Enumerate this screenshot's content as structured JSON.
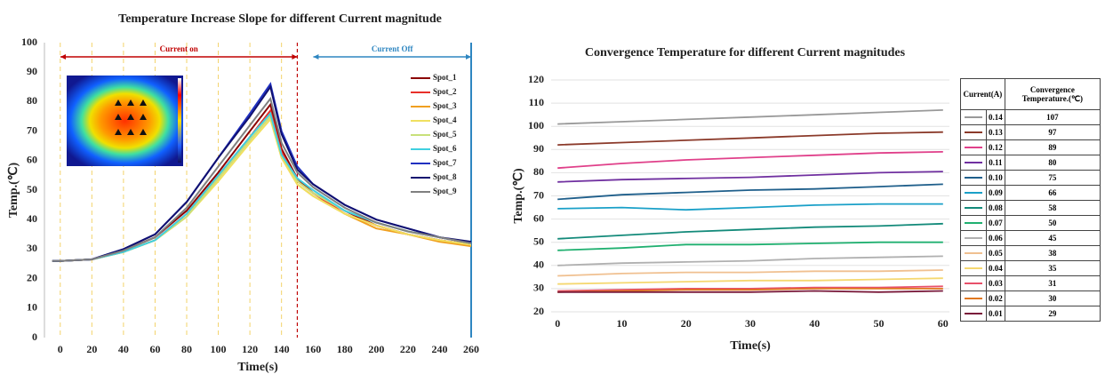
{
  "chart_data": [
    {
      "type": "line",
      "title": "Temperature Increase Slope for different Current magnitude",
      "x_label": "Time(s)",
      "y_label": "Temp.(℃)",
      "xlim": [
        -10,
        260
      ],
      "xticks": [
        0,
        20,
        40,
        60,
        80,
        100,
        120,
        140,
        160,
        180,
        200,
        220,
        240,
        260
      ],
      "ylim": [
        0,
        100
      ],
      "yticks": [
        0,
        10,
        20,
        30,
        40,
        50,
        60,
        70,
        80,
        90,
        100
      ],
      "grid": true,
      "legend": "upper right",
      "annotations": [
        {
          "text": "Current on",
          "x": [
            -10,
            150
          ],
          "color": "#c00000"
        },
        {
          "text": "Current Off",
          "x": [
            150,
            260
          ],
          "color": "#2e86c1"
        }
      ],
      "x": [
        -5,
        0,
        20,
        40,
        60,
        80,
        100,
        120,
        133,
        140,
        150,
        160,
        180,
        200,
        220,
        240,
        260
      ],
      "series": [
        {
          "name": "Spot_1",
          "color": "#8b0000",
          "values": [
            26,
            26,
            26.5,
            29.5,
            34,
            43,
            56,
            70,
            79,
            64,
            54,
            49,
            43,
            38,
            35,
            33,
            31.5
          ]
        },
        {
          "name": "Spot_2",
          "color": "#e8302a",
          "values": [
            26,
            26,
            26.5,
            29,
            33,
            42,
            55,
            68,
            77,
            63,
            53,
            49,
            42,
            38,
            35,
            33,
            31.5
          ]
        },
        {
          "name": "Spot_3",
          "color": "#f0a020",
          "values": [
            26,
            26,
            26.5,
            29,
            33,
            41,
            54,
            67,
            75,
            61,
            52,
            48,
            42,
            37,
            35,
            32.5,
            31
          ]
        },
        {
          "name": "Spot_4",
          "color": "#f0e060",
          "values": [
            26,
            26,
            26.5,
            29,
            33,
            41,
            53,
            66,
            74,
            61,
            52,
            48,
            42,
            38,
            35,
            33,
            31.5
          ]
        },
        {
          "name": "Spot_5",
          "color": "#c8e07a",
          "values": [
            26,
            26,
            26.5,
            29,
            33,
            41,
            54,
            67,
            75,
            62,
            53,
            49,
            43,
            39,
            36,
            34,
            32
          ]
        },
        {
          "name": "Spot_6",
          "color": "#40d0e0",
          "values": [
            26,
            26,
            26.5,
            29,
            33,
            42,
            55,
            68,
            76,
            62,
            54,
            50,
            43,
            39,
            36,
            34,
            32
          ]
        },
        {
          "name": "Spot_7",
          "color": "#2030c0",
          "values": [
            26,
            26,
            26.5,
            30,
            35,
            46,
            61,
            76,
            86,
            70,
            58,
            52,
            45,
            40,
            37,
            34,
            32
          ]
        },
        {
          "name": "Spot_8",
          "color": "#101070",
          "values": [
            26,
            26,
            26.5,
            30,
            35,
            46,
            61,
            75,
            85,
            69,
            57,
            52,
            45,
            40,
            37,
            34,
            32.5
          ]
        },
        {
          "name": "Spot_9",
          "color": "#808080",
          "values": [
            26,
            26,
            26.5,
            29.5,
            34,
            44,
            58,
            72,
            81,
            66,
            56,
            51,
            44,
            39,
            36,
            34,
            32
          ]
        }
      ]
    },
    {
      "type": "line",
      "title": "Convergence Temperature for different Current magnitudes",
      "x_label": "Time(s)",
      "y_label": "Temp.(℃)",
      "xlim": [
        -1,
        61
      ],
      "xticks": [
        0,
        10,
        20,
        30,
        40,
        50,
        60
      ],
      "ylim": [
        20,
        120
      ],
      "yticks": [
        20,
        30,
        40,
        50,
        60,
        70,
        80,
        90,
        100,
        110,
        120
      ],
      "grid": true,
      "table_headers": [
        "Current(A)",
        "Convergence Temperature.(℃)"
      ],
      "x": [
        0,
        10,
        20,
        30,
        40,
        50,
        60
      ],
      "series": [
        {
          "name": "0.14",
          "color": "#999999",
          "convergence": 107,
          "values": [
            101,
            102,
            103,
            104,
            105,
            106,
            107
          ]
        },
        {
          "name": "0.13",
          "color": "#8b3a2a",
          "convergence": 97,
          "values": [
            92,
            93,
            94,
            95,
            96,
            97,
            97.5
          ]
        },
        {
          "name": "0.12",
          "color": "#e0408a",
          "convergence": 89,
          "values": [
            82,
            84,
            85.5,
            86.5,
            87.5,
            88.5,
            89
          ]
        },
        {
          "name": "0.11",
          "color": "#7030a0",
          "convergence": 80,
          "values": [
            76,
            77,
            77.5,
            78,
            79,
            80,
            80.5
          ]
        },
        {
          "name": "0.10",
          "color": "#1f5f8b",
          "convergence": 75,
          "values": [
            68.5,
            70.5,
            71.5,
            72.5,
            73,
            74,
            75
          ]
        },
        {
          "name": "0.09",
          "color": "#1aa0c8",
          "convergence": 66,
          "values": [
            64.5,
            65,
            64,
            65,
            66,
            66.5,
            66.5
          ]
        },
        {
          "name": "0.08",
          "color": "#138a7a",
          "convergence": 58,
          "values": [
            51.5,
            53,
            54.5,
            55.5,
            56.5,
            57,
            58
          ]
        },
        {
          "name": "0.07",
          "color": "#20b070",
          "convergence": 50,
          "values": [
            46.5,
            47.5,
            49,
            49,
            49.5,
            50,
            50
          ]
        },
        {
          "name": "0.06",
          "color": "#b0b0b0",
          "convergence": 45,
          "values": [
            40,
            41,
            41.5,
            42,
            43,
            43.5,
            44
          ]
        },
        {
          "name": "0.05",
          "color": "#f0c090",
          "convergence": 38,
          "values": [
            35.5,
            36.5,
            37,
            37,
            37.5,
            37.5,
            38
          ]
        },
        {
          "name": "0.04",
          "color": "#f5d870",
          "convergence": 35,
          "values": [
            32,
            32.5,
            33,
            33.5,
            33.5,
            34,
            34.5
          ]
        },
        {
          "name": "0.03",
          "color": "#e8506a",
          "convergence": 31,
          "values": [
            29,
            29.5,
            30,
            30,
            30.5,
            30.5,
            31
          ]
        },
        {
          "name": "0.02",
          "color": "#e07820",
          "convergence": 30,
          "values": [
            28.5,
            29,
            29.5,
            29.5,
            30,
            30,
            30
          ]
        },
        {
          "name": "0.01",
          "color": "#7a1a3a",
          "convergence": 29,
          "values": [
            28.5,
            28.5,
            28.5,
            28.5,
            29,
            28.5,
            29
          ]
        }
      ]
    }
  ]
}
